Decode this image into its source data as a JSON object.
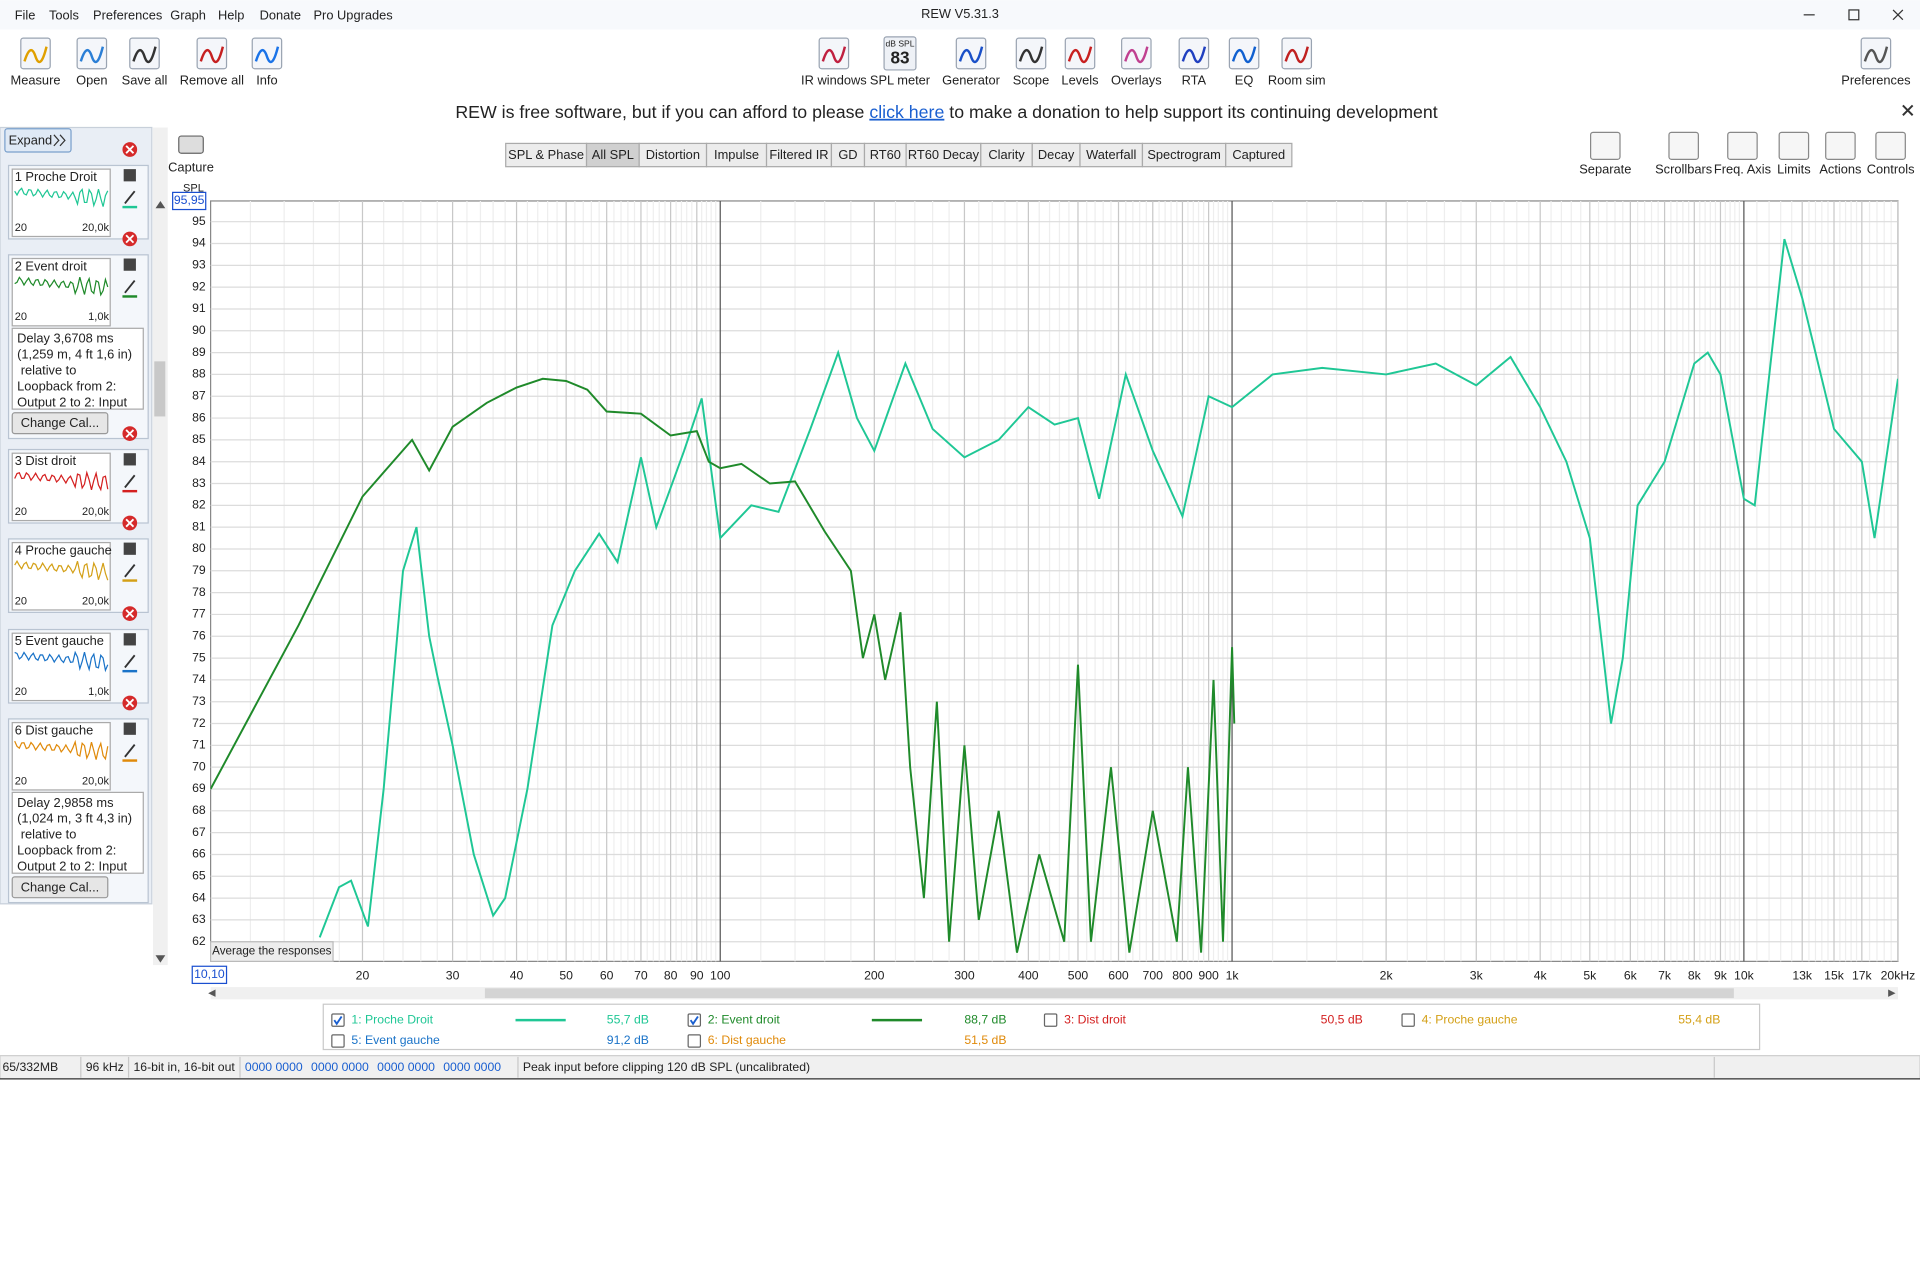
{
  "window": {
    "title": "REW V5.31.3"
  },
  "menu": [
    "File",
    "Tools",
    "Preferences",
    "Graph",
    "Help",
    "Donate",
    "Pro Upgrades"
  ],
  "toolbar_left": [
    "Measure",
    "Open",
    "Save all",
    "Remove all",
    "Info"
  ],
  "toolbar_center": [
    "IR windows",
    "SPL meter",
    "Generator",
    "Scope",
    "Levels",
    "Overlays",
    "RTA",
    "EQ",
    "Room sim"
  ],
  "spl_icon": {
    "label": "dB SPL",
    "value": "83"
  },
  "toolbar_right": [
    "Preferences"
  ],
  "banner": {
    "before": "REW is free software, but if you can afford to please ",
    "link": "click here",
    "after": " to make a donation to help support its continuing development"
  },
  "expand": "Expand",
  "capture": "Capture",
  "tabs": [
    "SPL & Phase",
    "All SPL",
    "Distortion",
    "Impulse",
    "Filtered IR",
    "GD",
    "RT60",
    "RT60 Decay",
    "Clarity",
    "Decay",
    "Waterfall",
    "Spectrogram",
    "Captured"
  ],
  "active_tab": 1,
  "graph_tools": [
    "Separate",
    "Scrollbars",
    "Freq. Axis",
    "Limits",
    "Actions",
    "Controls"
  ],
  "measurements": [
    {
      "label": "1 Proche Droit",
      "color": "#1fc795",
      "range": [
        "20",
        "20,0k"
      ]
    },
    {
      "label": "2 Event droit",
      "color": "#1f8a2a",
      "range": [
        "20",
        "1,0k"
      ],
      "delay": [
        "Delay 3,6708 ms",
        "(1,259 m, 4 ft 1,6 in)",
        " relative to",
        "Loopback from 2:",
        "Output 2 to 2: Input"
      ],
      "button": "Change Cal..."
    },
    {
      "label": "3 Dist droit",
      "color": "#d42020",
      "range": [
        "20",
        "20,0k"
      ]
    },
    {
      "label": "4 Proche gauche",
      "color": "#d4a017",
      "range": [
        "20",
        "20,0k"
      ]
    },
    {
      "label": "5 Event gauche",
      "color": "#1a73c8",
      "range": [
        "20",
        "1,0k"
      ]
    },
    {
      "label": "6 Dist gauche",
      "color": "#e08a0a",
      "range": [
        "20",
        "20,0k"
      ],
      "delay": [
        "Delay 2,9858 ms",
        "(1,024 m, 3 ft 4,3 in)",
        " relative to",
        "Loopback from 2:",
        "Output 2 to 2: Input"
      ],
      "button": "Change Cal..."
    }
  ],
  "chart_data": {
    "type": "line",
    "y_label": "SPL",
    "x_min_label": "10,10",
    "y_max_label": "95,95",
    "log_x": true,
    "grid": true,
    "xlim": [
      10.1,
      20000
    ],
    "ylim": [
      61.1,
      95.95
    ],
    "xticks": [
      20,
      30,
      40,
      50,
      60,
      70,
      80,
      90,
      100,
      200,
      300,
      400,
      500,
      600,
      700,
      800,
      900,
      {
        "value": 1000,
        "label": "1k"
      },
      {
        "value": 2000,
        "label": "2k"
      },
      {
        "value": 3000,
        "label": "3k"
      },
      {
        "value": 4000,
        "label": "4k"
      },
      {
        "value": 5000,
        "label": "5k"
      },
      {
        "value": 6000,
        "label": "6k"
      },
      {
        "value": 7000,
        "label": "7k"
      },
      {
        "value": 8000,
        "label": "8k"
      },
      {
        "value": 9000,
        "label": "9k"
      },
      {
        "value": 10000,
        "label": "10k"
      },
      {
        "value": 13000,
        "label": "13k"
      },
      {
        "value": 15000,
        "label": "15k"
      },
      {
        "value": 17000,
        "label": "17k"
      },
      {
        "value": 20000,
        "label": "20kHz"
      }
    ],
    "yticks": [
      62,
      63,
      64,
      65,
      66,
      67,
      68,
      69,
      70,
      71,
      72,
      73,
      74,
      75,
      76,
      77,
      78,
      79,
      80,
      81,
      82,
      83,
      84,
      85,
      86,
      87,
      88,
      89,
      90,
      91,
      92,
      93,
      94,
      95
    ],
    "series": [
      {
        "name": "1: Proche Droit",
        "color": "#1fc795",
        "checked": true,
        "level": "55,7 dB",
        "x": [
          16.5,
          18,
          19,
          20.5,
          22,
          24,
          25.5,
          27,
          28,
          30,
          33,
          36,
          38,
          42,
          47,
          52,
          58,
          63,
          70,
          75,
          85,
          92,
          100,
          115,
          130,
          150,
          170,
          185,
          200,
          230,
          260,
          300,
          350,
          400,
          450,
          500,
          550,
          620,
          700,
          800,
          900,
          1000,
          1200,
          1500,
          2000,
          2500,
          3000,
          3500,
          4000,
          4500,
          5000,
          5500,
          5800,
          6200,
          7000,
          8000,
          8500,
          9000,
          10000,
          10500,
          12000,
          13000,
          15000,
          17000,
          18000,
          20000
        ],
        "values": [
          62.2,
          64.5,
          64.8,
          62.7,
          69,
          79,
          81,
          76,
          74.2,
          71,
          66,
          63.2,
          64,
          69,
          76.5,
          79,
          80.7,
          79.4,
          84.2,
          81,
          84.5,
          86.9,
          80.5,
          82,
          81.7,
          85.5,
          89,
          86,
          84.5,
          88.5,
          85.5,
          84.2,
          85,
          86.5,
          85.7,
          86,
          82.3,
          88,
          84.5,
          81.5,
          87,
          86.5,
          88,
          88.3,
          88,
          88.5,
          87.5,
          88.8,
          86.5,
          84,
          80.5,
          72,
          75,
          82,
          84,
          88.5,
          89,
          88,
          82.3,
          82,
          94.2,
          91.5,
          85.5,
          84,
          80.5,
          87.8
        ]
      },
      {
        "name": "2: Event droit",
        "color": "#1f8a2a",
        "checked": true,
        "level": "88,7 dB",
        "x": [
          10.1,
          15,
          20,
          25,
          27,
          30,
          35,
          40,
          45,
          50,
          55,
          60,
          70,
          80,
          90,
          95,
          100,
          110,
          125,
          140,
          160,
          180,
          190,
          200,
          210,
          225,
          235,
          250,
          265,
          280,
          300,
          320,
          350,
          380,
          420,
          470,
          500,
          530,
          580,
          630,
          700,
          780,
          820,
          870,
          920,
          960,
          1000,
          1010
        ],
        "values": [
          69,
          76.5,
          82.4,
          85,
          83.6,
          85.6,
          86.7,
          87.4,
          87.8,
          87.7,
          87.3,
          86.3,
          86.2,
          85.2,
          85.4,
          84,
          83.7,
          83.9,
          83,
          83.1,
          80.8,
          79,
          75,
          77,
          74,
          77.1,
          70,
          64,
          73,
          62,
          71,
          63,
          68,
          61.5,
          66,
          62,
          74.7,
          62,
          70,
          61.5,
          68,
          62,
          70,
          61.5,
          74,
          62,
          75.5,
          72
        ]
      },
      {
        "name": "3: Dist droit",
        "color": "#d42020",
        "checked": false,
        "level": "50,5 dB"
      },
      {
        "name": "4: Proche gauche",
        "color": "#d4a017",
        "checked": false,
        "level": "55,4 dB"
      },
      {
        "name": "5: Event gauche",
        "color": "#1a73c8",
        "checked": false,
        "level": "91,2 dB"
      },
      {
        "name": "6: Dist gauche",
        "color": "#e08a0a",
        "checked": false,
        "level": "51,5 dB"
      }
    ],
    "button": "Average the responses"
  },
  "status": [
    "65/332MB",
    "96 kHz",
    "16-bit in, 16-bit out",
    "0000 0000",
    "0000 0000",
    "0000 0000",
    "0000 0000",
    "Peak input before clipping 120 dB SPL (uncalibrated)"
  ]
}
